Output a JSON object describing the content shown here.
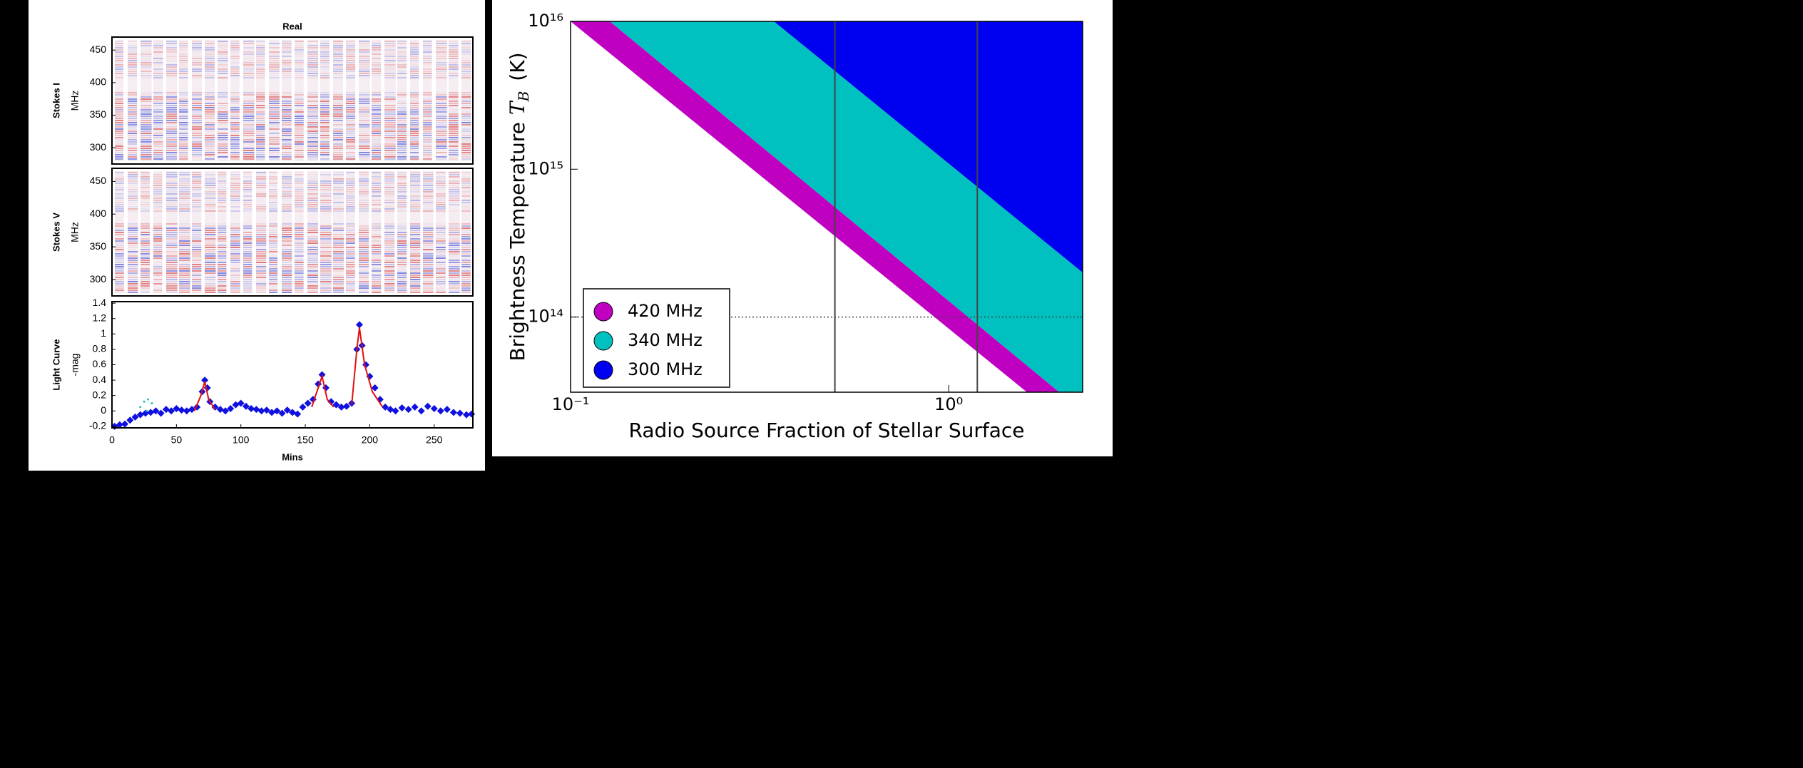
{
  "chart_data": [
    {
      "type": "heatmap",
      "title": "Real",
      "ylabel": "Stokes I",
      "yunit": "MHz",
      "xlim": [
        0,
        280
      ],
      "ylim": [
        275,
        470
      ],
      "yticks": [
        300,
        350,
        400,
        450
      ]
    },
    {
      "type": "heatmap",
      "ylabel": "Stokes V",
      "yunit": "MHz",
      "xlim": [
        0,
        280
      ],
      "ylim": [
        275,
        470
      ],
      "yticks": [
        300,
        350,
        400,
        450
      ]
    },
    {
      "type": "scatter",
      "ylabel": "Light Curve",
      "yunit": "-mag",
      "xlabel": "Mins",
      "xlim": [
        0,
        280
      ],
      "ylim": [
        -0.22,
        1.42
      ],
      "xticks": [
        0,
        50,
        100,
        150,
        200,
        250
      ],
      "yticks": [
        -0.2,
        0.0,
        0.2,
        0.4,
        0.6,
        0.8,
        1.0,
        1.2,
        1.4
      ],
      "series": [
        {
          "color": "#1010e0",
          "marker": "diamond",
          "x": [
            2,
            6,
            10,
            14,
            18,
            22,
            26,
            30,
            34,
            38,
            42,
            46,
            50,
            54,
            58,
            62,
            66,
            70,
            72,
            74,
            76,
            80,
            84,
            88,
            92,
            96,
            100,
            104,
            108,
            112,
            116,
            120,
            124,
            128,
            132,
            136,
            140,
            144,
            148,
            152,
            156,
            160,
            163,
            166,
            170,
            174,
            178,
            182,
            186,
            190,
            192,
            194,
            197,
            200,
            204,
            208,
            212,
            216,
            220,
            225,
            230,
            235,
            240,
            245,
            250,
            255,
            260,
            265,
            270,
            275,
            279
          ],
          "values": [
            -0.2,
            -0.18,
            -0.17,
            -0.12,
            -0.08,
            -0.05,
            -0.03,
            -0.02,
            0.0,
            -0.03,
            0.02,
            0.0,
            0.03,
            0.01,
            0.0,
            0.02,
            0.05,
            0.25,
            0.4,
            0.3,
            0.12,
            0.05,
            0.02,
            0.0,
            0.03,
            0.08,
            0.1,
            0.06,
            0.03,
            0.02,
            0.0,
            0.01,
            -0.02,
            0.0,
            -0.03,
            0.01,
            -0.02,
            -0.04,
            0.05,
            0.1,
            0.15,
            0.35,
            0.47,
            0.3,
            0.12,
            0.08,
            0.05,
            0.06,
            0.1,
            0.8,
            1.12,
            0.85,
            0.6,
            0.45,
            0.3,
            0.15,
            0.05,
            0.02,
            0.0,
            0.04,
            0.02,
            0.05,
            0.0,
            0.06,
            0.03,
            0.0,
            0.02,
            -0.02,
            -0.03,
            -0.05,
            -0.04
          ]
        },
        {
          "color": "#e01010",
          "marker": "line",
          "x": [
            64,
            69,
            72,
            75,
            80,
            110,
            155,
            160,
            163,
            167,
            172,
            180,
            186,
            190,
            192,
            196,
            202,
            210
          ],
          "values": [
            0.0,
            0.2,
            0.38,
            0.15,
            0.02,
            null,
            0.05,
            0.3,
            0.45,
            0.15,
            0.05,
            null,
            0.08,
            0.8,
            1.08,
            0.6,
            0.25,
            0.05
          ]
        },
        {
          "color": "#20c0c0",
          "marker": "dot",
          "x": [
            22,
            25,
            28,
            31,
            27
          ],
          "values": [
            0.05,
            0.12,
            0.15,
            0.1,
            0.0
          ]
        }
      ]
    },
    {
      "type": "band",
      "xlabel": "Radio Source Fraction of Stellar Surface",
      "ylabel": "Brightness Temperature",
      "ylabel_symbol": "T",
      "ylabel_subscript": "B",
      "ylabel_unit": "(K)",
      "xscale": "log",
      "yscale": "log",
      "xlim": [
        0.1,
        2.26
      ],
      "ylim": [
        31000000000000.0,
        1e+16
      ],
      "xticks": [
        {
          "value": 0.1,
          "label": "10⁻¹"
        },
        {
          "value": 1,
          "label": "10⁰"
        }
      ],
      "yticks": [
        {
          "value": 100000000000000.0,
          "label": "10¹⁴"
        },
        {
          "value": 1000000000000000.0,
          "label": "10¹⁵"
        },
        {
          "value": 1e+16,
          "label": "10¹⁶"
        }
      ],
      "vlines": [
        0.5,
        1.19
      ],
      "hline": 100000000000000.0,
      "legend": "lower left",
      "series": [
        {
          "name": "420 MHz",
          "color": "#c000c0",
          "x": [
            0.1,
            0.127,
            1.96,
            1.61
          ],
          "values": [
            1e+16,
            1e+16,
            31000000000000.0,
            31000000000000.0
          ]
        },
        {
          "name": "340 MHz",
          "color": "#00c0c0",
          "x": [
            0.127,
            0.345,
            2.26,
            2.26,
            1.96
          ],
          "values": [
            1e+16,
            1e+16,
            200000000000000.0,
            31000000000000.0,
            31000000000000.0
          ]
        },
        {
          "name": "300 MHz",
          "color": "#0000f0",
          "x": [
            0.345,
            2.26,
            2.26
          ],
          "values": [
            1e+16,
            1e+16,
            200000000000000.0
          ]
        }
      ]
    }
  ]
}
